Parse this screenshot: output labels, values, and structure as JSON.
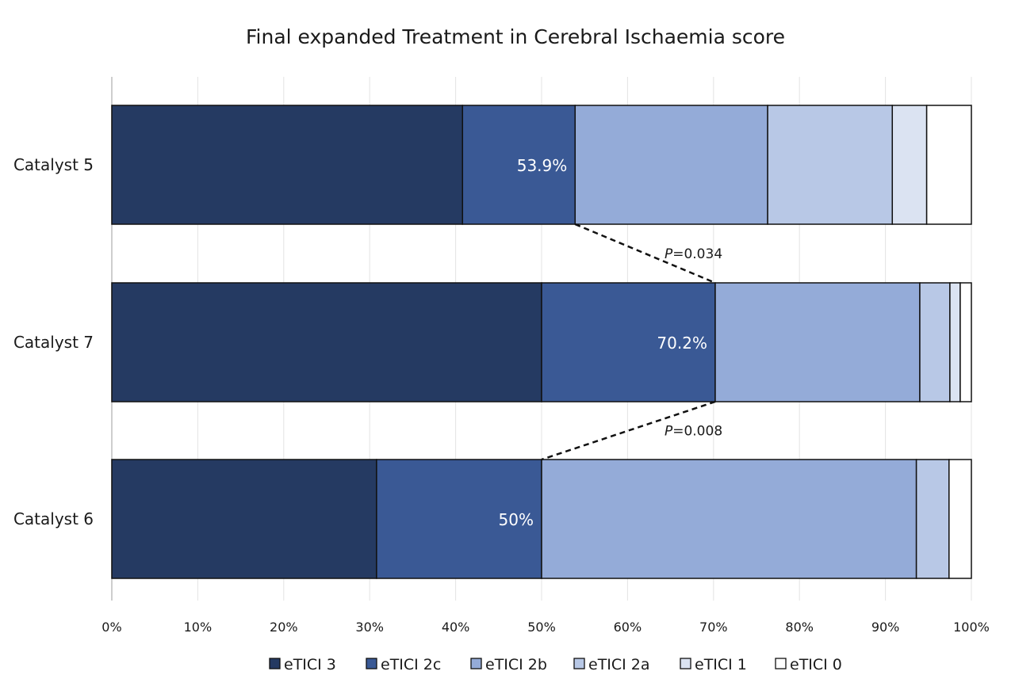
{
  "chart_data": {
    "type": "bar",
    "orientation": "horizontal",
    "stacked": true,
    "title": "Final expanded Treatment in Cerebral Ischaemia score",
    "categories": [
      "Catalyst 5",
      "Catalyst 7",
      "Catalyst 6"
    ],
    "xlim": [
      0,
      100
    ],
    "x_ticks": [
      "0%",
      "10%",
      "20%",
      "30%",
      "40%",
      "50%",
      "60%",
      "70%",
      "80%",
      "90%",
      "100%"
    ],
    "grid": "vertical",
    "legend_position": "bottom",
    "series": [
      {
        "name": "eTICI 3",
        "color": "#253a62",
        "values": [
          40.8,
          50.0,
          30.8
        ]
      },
      {
        "name": "eTICI 2c",
        "color": "#3a5995",
        "values": [
          13.1,
          20.2,
          19.2
        ]
      },
      {
        "name": "eTICI 2b",
        "color": "#94abd8",
        "values": [
          22.4,
          23.8,
          43.6
        ]
      },
      {
        "name": "eTICI 2a",
        "color": "#b8c8e6",
        "values": [
          14.5,
          3.5,
          3.8
        ]
      },
      {
        "name": "eTICI 1",
        "color": "#dbe3f2",
        "values": [
          4.0,
          1.2,
          0
        ]
      },
      {
        "name": "eTICI 0",
        "color": "#ffffff",
        "values": [
          5.2,
          1.3,
          2.6
        ]
      }
    ],
    "data_labels": [
      {
        "category": "Catalyst 5",
        "value": 53.9,
        "text": "53.9%"
      },
      {
        "category": "Catalyst 7",
        "value": 70.2,
        "text": "70.2%"
      },
      {
        "category": "Catalyst 6",
        "value": 50.0,
        "text": "50%"
      }
    ],
    "comparisons": [
      {
        "from_category": "Catalyst 5",
        "from_value": 53.9,
        "to_category": "Catalyst 7",
        "to_value": 70.2,
        "p_symbol": "P",
        "p_rest": "=0.034"
      },
      {
        "from_category": "Catalyst 7",
        "from_value": 70.2,
        "to_category": "Catalyst 6",
        "to_value": 50.0,
        "p_symbol": "P",
        "p_rest": "=0.008"
      }
    ]
  }
}
